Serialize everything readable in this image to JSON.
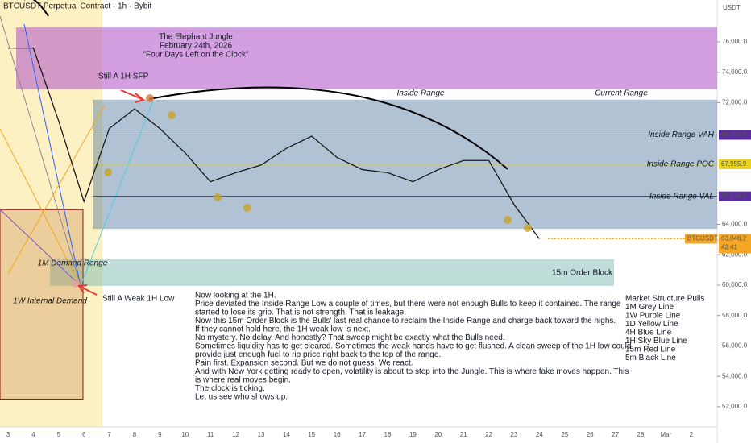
{
  "chart_data": {
    "type": "line",
    "header": "BTCUSDT Perpetual Contract · 1h · Bybit",
    "currency": "USDT",
    "title_lines": [
      "The Elephant Jungle",
      "February 24th, 2026",
      "\"Four Days Left on the Clock\""
    ],
    "categories": [
      "3",
      "4",
      "5",
      "6",
      "7",
      "8",
      "9",
      "10",
      "11",
      "12",
      "13",
      "14",
      "15",
      "16",
      "17",
      "18",
      "19",
      "20",
      "21",
      "22",
      "23",
      "24",
      "25",
      "26",
      "27",
      "28",
      "Mar",
      "2"
    ],
    "series": [
      {
        "name": "BTCUSDT.P",
        "color": "#1a1a1a",
        "values": [
          75600,
          75600,
          70800,
          65500,
          70300,
          71600,
          70300,
          68700,
          66800,
          67400,
          67900,
          69000,
          69800,
          68400,
          67600,
          67400,
          66800,
          67600,
          68200,
          68200,
          65300,
          63046.2,
          null,
          null,
          null,
          null,
          null,
          null
        ]
      }
    ],
    "last_price": {
      "value": 63046.2,
      "label": "63,046.2",
      "countdown": "42:41",
      "color": "#f5a623"
    },
    "ylim": [
      50670,
      78760
    ],
    "yticks": [
      {
        "value": 76000,
        "label": "76,000.0"
      },
      {
        "value": 74000,
        "label": "74,000.0"
      },
      {
        "value": 72000,
        "label": "72,000.0"
      },
      {
        "value": 64000,
        "label": "64,000.0"
      },
      {
        "value": 62000,
        "label": "62,000.0"
      },
      {
        "value": 60000,
        "label": "60,000.0"
      },
      {
        "value": 58000,
        "label": "58,000.0"
      },
      {
        "value": 56000,
        "label": "56,000.0"
      },
      {
        "value": 54000,
        "label": "54,000.0"
      },
      {
        "value": 52000,
        "label": "52,000.0"
      }
    ],
    "levels": [
      {
        "name": "Inside Range VAH",
        "value": 69882.6,
        "label": "69,882.6",
        "color": "#5b2c9e"
      },
      {
        "name": "Inside Range POC",
        "value": 67955.9,
        "label": "67,955.9",
        "color": "#e6d21a"
      },
      {
        "name": "Inside Range VAL",
        "value": 65844.8,
        "label": "65,844.8",
        "color": "#5b2c9e"
      }
    ],
    "zones": [
      {
        "range": [
          72900,
          76950
        ],
        "color": "rgba(175,80,200,0.55)"
      },
      {
        "name": "Inside Range",
        "range": [
          63700,
          72200
        ],
        "color": "rgba(80,120,160,0.45)"
      },
      {
        "name": "15m Order Block",
        "range": [
          59950,
          61700
        ],
        "color": "rgba(110,180,170,0.45)"
      },
      {
        "name": "1M Demand Range",
        "range": [
          52500,
          64965
        ],
        "color": "rgba(200,140,80,0.35)"
      }
    ],
    "annotations": [
      "Current Range",
      "Still A 1H SFP",
      "1W Internal Demand",
      "Still A Weak 1H Low"
    ],
    "notes": [
      "Now looking at the 1H.",
      "Price deviated the Inside Range Low a couple of times, but there were not enough Bulls to keep it contained. The range",
      "started to lose its grip. That is not strength. That is leakage.",
      "Now this 15m Order Block is the Bulls' last real chance to reclaim the Inside Range and charge back toward the highs.",
      "If they cannot hold here, the 1H weak low is next.",
      "No mystery. No delay. And honestly? That sweep might be exactly what the Bulls need.",
      "Sometimes liquidity has to get cleared. Sometimes the weak hands have to get flushed. A clean sweep of the 1H low could",
      "provide just enough fuel to rip price right back to the top of the range.",
      "Pain first. Expansion second. But we do not guess. We react.",
      "And with New York getting ready to open, volatility is about to step into the Jungle. This is where fake moves happen. This",
      "is where real moves begin.",
      "The clock is ticking.",
      "Let us see who shows up."
    ],
    "structure_notes": [
      "Market Structure Pulls",
      "1M Grey Line",
      "1W Purple Line",
      "1D Yellow Line",
      "4H Blue Line",
      "1H Sky Blue Line",
      "15m Red Line",
      "5m Black Line"
    ]
  }
}
